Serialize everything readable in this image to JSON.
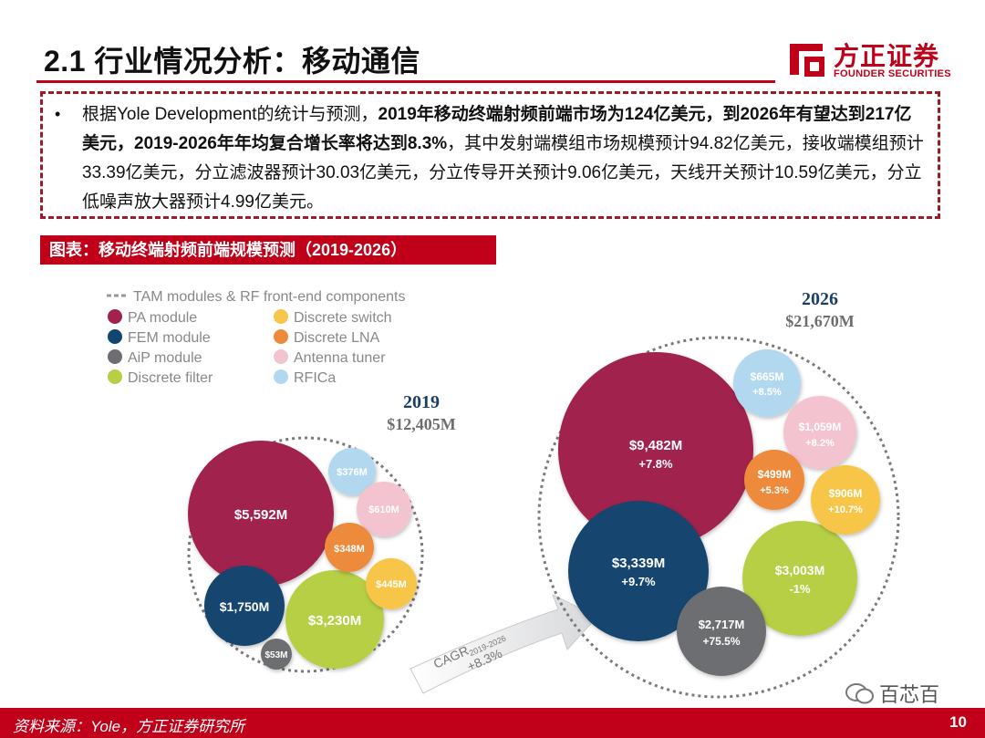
{
  "header": {
    "title": "2.1 行业情况分析：移动通信"
  },
  "logo": {
    "cn": "方正证券",
    "en": "FOUNDER SECURITIES"
  },
  "summary": {
    "bullet": "•",
    "p1": "根据Yole Development的统计与预测，",
    "b1": "2019年移动终端射频前端市场为124亿美元，到2026年有望达到217亿美元，2019-2026年年均复合增长率将达到8.3%",
    "p2": "，其中发射端模组市场规模预计94.82亿美元，接收端模组预计33.39亿美元，分立滤波器预计30.03亿美元，分立传导开关预计9.06亿美元，天线开关预计10.59亿美元，分立低噪声放大器预计4.99亿美元。"
  },
  "caption": "图表：移动终端射频前端规模预测（2019-2026）",
  "legend": {
    "tam": "TAM modules & RF front-end components",
    "items": [
      {
        "label": "PA module",
        "color": "#a0224d"
      },
      {
        "label": "FEM module",
        "color": "#12456f"
      },
      {
        "label": "AiP module",
        "color": "#6d6e71"
      },
      {
        "label": "Discrete filter",
        "color": "#b6cf45"
      },
      {
        "label": "Discrete switch",
        "color": "#f7c64a"
      },
      {
        "label": "Discrete LNA",
        "color": "#ee8a3b"
      },
      {
        "label": "Antenna tuner",
        "color": "#f4c3d0"
      },
      {
        "label": "RFICa",
        "color": "#b2d8f0"
      }
    ]
  },
  "y2019": {
    "year": "2019",
    "total": "$12,405M",
    "pa": "$5,592M",
    "fem": "$1,750M",
    "aip": "$53M",
    "filter": "$3,230M",
    "switch": "$445M",
    "lna": "$348M",
    "tuner": "$610M",
    "rfic": "$376M"
  },
  "y2026": {
    "year": "2026",
    "total": "$21,670M",
    "pa": "$9,482M",
    "pa_g": "+7.8%",
    "fem": "$3,339M",
    "fem_g": "+9.7%",
    "aip": "$2,717M",
    "aip_g": "+75.5%",
    "filter": "$3,003M",
    "filter_g": "-1%",
    "switch": "$906M",
    "switch_g": "+10.7%",
    "lna": "$499M",
    "lna_g": "+5.3%",
    "tuner": "$1,059M",
    "tuner_g": "+8.2%",
    "rfic": "$665M",
    "rfic_g": "+8.5%"
  },
  "cagr": {
    "label": "CAGR",
    "sub": "2019-2026",
    "value": "+8.3%"
  },
  "footer": {
    "source": "资料来源：Yole，方正证券研究所",
    "page": "10"
  },
  "watermark": "百芯百"
}
